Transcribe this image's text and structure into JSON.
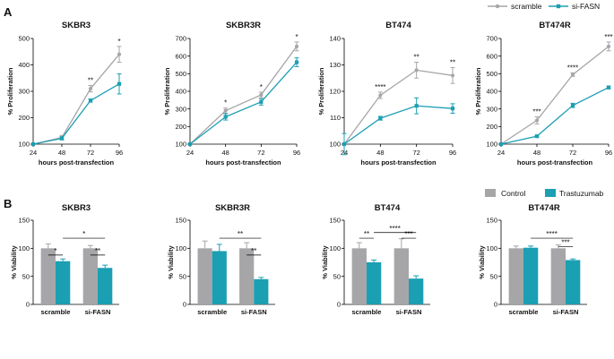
{
  "panel_labels": [
    "A",
    "B"
  ],
  "legend_a": {
    "items": [
      {
        "name": "scramble",
        "color": "#a6a6a9"
      },
      {
        "name": "si-FASN",
        "color": "#1b9fb3"
      }
    ]
  },
  "legend_b": {
    "items": [
      {
        "name": "Control",
        "color": "#a6a6a9"
      },
      {
        "name": "Trastuzumab",
        "color": "#1b9fb3"
      }
    ]
  },
  "chart_data": [
    {
      "type": "line",
      "title": "SKBR3",
      "xlabel": "hours post-transfection",
      "ylabel": "% Proliferation",
      "x": [
        24,
        48,
        72,
        96
      ],
      "xticks": [
        "24",
        "48",
        "72",
        "96"
      ],
      "ylim": [
        100,
        500
      ],
      "yticks": [
        "100",
        "200",
        "300",
        "400",
        "500"
      ],
      "series": [
        {
          "name": "scramble",
          "values": [
            100,
            125,
            310,
            440
          ],
          "err": [
            0,
            8,
            12,
            30
          ]
        },
        {
          "name": "si-FASN",
          "values": [
            100,
            122,
            265,
            328
          ],
          "err": [
            0,
            6,
            6,
            38
          ]
        }
      ],
      "significance": [
        {
          "x": 72,
          "label": "**"
        },
        {
          "x": 96,
          "label": "*"
        }
      ]
    },
    {
      "type": "line",
      "title": "SKBR3R",
      "xlabel": "hours post-transfection",
      "ylabel": "% Proliferation",
      "x": [
        24,
        48,
        72,
        96
      ],
      "xticks": [
        "24",
        "48",
        "72",
        "96"
      ],
      "ylim": [
        100,
        700
      ],
      "yticks": [
        "100",
        "200",
        "300",
        "400",
        "500",
        "600",
        "700"
      ],
      "series": [
        {
          "name": "scramble",
          "values": [
            100,
            290,
            380,
            655
          ],
          "err": [
            0,
            15,
            15,
            25
          ]
        },
        {
          "name": "si-FASN",
          "values": [
            100,
            255,
            340,
            565
          ],
          "err": [
            0,
            18,
            18,
            25
          ]
        }
      ],
      "significance": [
        {
          "x": 48,
          "label": "*"
        },
        {
          "x": 72,
          "label": "*"
        },
        {
          "x": 96,
          "label": "*"
        }
      ]
    },
    {
      "type": "line",
      "title": "BT474",
      "xlabel": "hours post-transfection",
      "ylabel": "% Proliferation",
      "x": [
        24,
        48,
        72,
        96
      ],
      "xticks": [
        "24",
        "48",
        "72",
        "96"
      ],
      "ylim": [
        100,
        140
      ],
      "yticks": [
        "100",
        "110",
        "120",
        "130",
        "140"
      ],
      "series": [
        {
          "name": "scramble",
          "values": [
            100,
            118.5,
            128,
            126
          ],
          "err": [
            0,
            1.2,
            3,
            3
          ]
        },
        {
          "name": "si-FASN",
          "values": [
            100,
            109.8,
            114.5,
            113.5
          ],
          "err": [
            4,
            0.7,
            3,
            1.8
          ]
        }
      ],
      "significance": [
        {
          "x": 48,
          "label": "****"
        },
        {
          "x": 72,
          "label": "**"
        },
        {
          "x": 96,
          "label": "**"
        }
      ]
    },
    {
      "type": "line",
      "title": "BT474R",
      "xlabel": "hours post-transfection",
      "ylabel": "% Proliferation",
      "x": [
        24,
        48,
        72,
        96
      ],
      "xticks": [
        "24",
        "48",
        "72",
        "96"
      ],
      "ylim": [
        100,
        700
      ],
      "yticks": [
        "100",
        "200",
        "300",
        "400",
        "500",
        "600",
        "700"
      ],
      "series": [
        {
          "name": "scramble",
          "values": [
            100,
            235,
            495,
            655
          ],
          "err": [
            0,
            20,
            10,
            25
          ]
        },
        {
          "name": "si-FASN",
          "values": [
            100,
            145,
            320,
            422
          ],
          "err": [
            0,
            5,
            12,
            8
          ]
        }
      ],
      "significance": [
        {
          "x": 48,
          "label": "***"
        },
        {
          "x": 72,
          "label": "****"
        },
        {
          "x": 96,
          "label": "***"
        }
      ]
    },
    {
      "type": "bar",
      "title": "SKBR3",
      "ylabel": "% Viability",
      "categories": [
        "scramble",
        "si-FASN"
      ],
      "ylim": [
        0,
        150
      ],
      "yticks": [
        "0",
        "50",
        "100",
        "150"
      ],
      "series": [
        {
          "name": "Control",
          "values": [
            100,
            100
          ],
          "err": [
            8,
            5
          ]
        },
        {
          "name": "Trastuzumab",
          "values": [
            77,
            65
          ],
          "err": [
            4,
            5
          ]
        }
      ],
      "brackets": [
        {
          "from": [
            0,
            0
          ],
          "to": [
            0,
            1
          ],
          "y": 88,
          "label": "*"
        },
        {
          "from": [
            0,
            1
          ],
          "to": [
            1,
            1
          ],
          "y": 118,
          "label": "*"
        },
        {
          "from": [
            1,
            0
          ],
          "to": [
            1,
            1
          ],
          "y": 88,
          "label": "**"
        }
      ]
    },
    {
      "type": "bar",
      "title": "SKBR3R",
      "ylabel": "% Viability",
      "categories": [
        "scramble",
        "si-FASN"
      ],
      "ylim": [
        0,
        150
      ],
      "yticks": [
        "0",
        "50",
        "100",
        "150"
      ],
      "series": [
        {
          "name": "Control",
          "values": [
            100,
            100
          ],
          "err": [
            13,
            10
          ]
        },
        {
          "name": "Trastuzumab",
          "values": [
            95,
            45
          ],
          "err": [
            12,
            3
          ]
        }
      ],
      "brackets": [
        {
          "from": [
            0,
            1
          ],
          "to": [
            1,
            1
          ],
          "y": 118,
          "label": "**"
        },
        {
          "from": [
            1,
            0
          ],
          "to": [
            1,
            1
          ],
          "y": 88,
          "label": "**"
        }
      ]
    },
    {
      "type": "bar",
      "title": "BT474",
      "ylabel": "% Viability",
      "categories": [
        "scramble",
        "si-FASN"
      ],
      "ylim": [
        0,
        150
      ],
      "yticks": [
        "0",
        "50",
        "100",
        "150"
      ],
      "series": [
        {
          "name": "Control",
          "values": [
            100,
            100
          ],
          "err": [
            10,
            17
          ]
        },
        {
          "name": "Trastuzumab",
          "values": [
            75,
            46
          ],
          "err": [
            4,
            5
          ]
        }
      ],
      "brackets": [
        {
          "from": [
            0,
            0
          ],
          "to": [
            0,
            1
          ],
          "y": 118,
          "label": "**"
        },
        {
          "from": [
            0,
            1
          ],
          "to": [
            1,
            1
          ],
          "y": 128,
          "label": "****"
        },
        {
          "from": [
            1,
            0
          ],
          "to": [
            1,
            1
          ],
          "y": 118,
          "label": "***"
        }
      ]
    },
    {
      "type": "bar",
      "title": "BT474R",
      "ylabel": "% Viability",
      "categories": [
        "scramble",
        "si-FASN"
      ],
      "ylim": [
        0,
        150
      ],
      "yticks": [
        "0",
        "50",
        "100",
        "150"
      ],
      "series": [
        {
          "name": "Control",
          "values": [
            100,
            100
          ],
          "err": [
            4,
            6
          ]
        },
        {
          "name": "Trastuzumab",
          "values": [
            101,
            79
          ],
          "err": [
            3,
            2
          ]
        }
      ],
      "brackets": [
        {
          "from": [
            0,
            1
          ],
          "to": [
            1,
            1
          ],
          "y": 118,
          "label": "****"
        },
        {
          "from": [
            1,
            0
          ],
          "to": [
            1,
            1
          ],
          "y": 103,
          "label": "***"
        }
      ]
    }
  ]
}
